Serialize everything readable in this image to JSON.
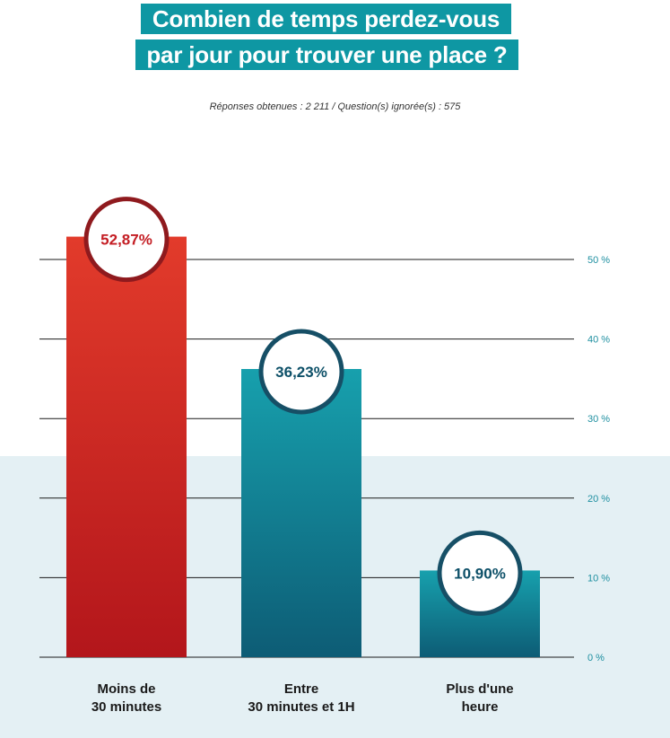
{
  "title": {
    "line1": "Combien de temps perdez-vous",
    "line2": "par jour pour trouver une place ?"
  },
  "subtitle": "Réponses obtenues : 2 211 / Question(s) ignorée(s) : 575",
  "colors": {
    "title_bg": "#0e97a3",
    "bar_red_top": "#e23b2b",
    "bar_red_bottom": "#b3161b",
    "bar_teal_top": "#17a0ad",
    "bar_teal_bottom": "#0d5c75",
    "badge_red_ring": "#8f1a1e",
    "badge_teal_ring": "#164f66",
    "label_red": "#c41e24",
    "label_teal": "#0d5068",
    "axis_text": "#1e8fa0"
  },
  "chart_data": {
    "type": "bar",
    "categories": [
      [
        "Moins de",
        "30 minutes"
      ],
      [
        "Entre",
        "30 minutes et 1H"
      ],
      [
        "Plus d'une",
        "heure"
      ]
    ],
    "values": [
      52.87,
      36.23,
      10.9
    ],
    "data_labels": [
      "52,87%",
      "36,23%",
      "10,90%"
    ],
    "ylim": [
      0,
      50
    ],
    "y_ticks": [
      0,
      10,
      20,
      30,
      40,
      50
    ],
    "y_tick_labels": [
      "0 %",
      "10 %",
      "20 %",
      "30 %",
      "40 %",
      "50 %"
    ],
    "axis_position": "right",
    "grid": true
  }
}
